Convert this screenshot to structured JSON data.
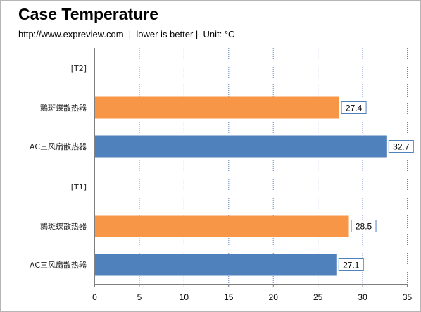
{
  "title": "Case Temperature",
  "subtitle": "http://www.expreview.com  |  lower is better |  Unit: °C",
  "colors": {
    "orange": "#f79646",
    "blue": "#4f81bd",
    "grid": "#5b7fc0",
    "axis": "#7f7f7f"
  },
  "chart_data": {
    "type": "bar",
    "orientation": "horizontal",
    "title": "Case Temperature",
    "subtitle": "http://www.expreview.com  |  lower is better |  Unit: °C",
    "xlim": [
      0,
      35
    ],
    "x_ticks": [
      0,
      5,
      10,
      15,
      20,
      25,
      30,
      35
    ],
    "grid": "vertical dotted",
    "rows": [
      {
        "label": "[T2]",
        "value": null,
        "color": "orange"
      },
      {
        "label": "䴉斑蝶散热器",
        "value": 27.4,
        "color": "orange"
      },
      {
        "label": "AC三风扇散热器",
        "value": 32.7,
        "color": "blue"
      },
      {
        "label": "[T1]",
        "value": null,
        "color": "orange"
      },
      {
        "label": "䴉斑蝶散热器",
        "value": 28.5,
        "color": "orange"
      },
      {
        "label": "AC三风扇散热器",
        "value": 27.1,
        "color": "blue"
      }
    ]
  }
}
